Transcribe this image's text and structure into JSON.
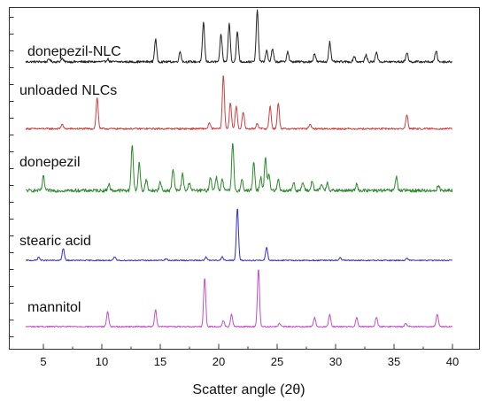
{
  "chart_data": {
    "type": "line",
    "xlabel": "Scatter angle (2θ)",
    "ylabel": "",
    "xlim": [
      3,
      40
    ],
    "x_ticks": [
      5,
      10,
      15,
      20,
      25,
      30,
      35,
      40
    ],
    "x_tick_labels": [
      "5",
      "10",
      "15",
      "20",
      "25",
      "30",
      "35",
      "40"
    ],
    "grid": false,
    "legend": "inline labels",
    "series": [
      {
        "name": "donepezil-NLC",
        "color": "#222222",
        "baseline": 0.05,
        "noise": 0.02,
        "peaks": [
          [
            5.5,
            0.05
          ],
          [
            6.6,
            0.06
          ],
          [
            10.5,
            0.05
          ],
          [
            14.6,
            0.4
          ],
          [
            16.7,
            0.18
          ],
          [
            18.7,
            0.7
          ],
          [
            20.2,
            0.48
          ],
          [
            20.9,
            0.68
          ],
          [
            21.6,
            0.53
          ],
          [
            23.3,
            0.92
          ],
          [
            24.1,
            0.2
          ],
          [
            24.6,
            0.22
          ],
          [
            25.9,
            0.18
          ],
          [
            28.2,
            0.15
          ],
          [
            29.5,
            0.35
          ],
          [
            31.6,
            0.1
          ],
          [
            32.6,
            0.12
          ],
          [
            33.5,
            0.18
          ],
          [
            36.1,
            0.17
          ],
          [
            38.6,
            0.2
          ]
        ]
      },
      {
        "name": "unloaded NLCs",
        "color": "#d04040",
        "baseline": 0.04,
        "noise": 0.015,
        "peaks": [
          [
            6.6,
            0.08
          ],
          [
            9.6,
            0.55
          ],
          [
            19.2,
            0.1
          ],
          [
            20.4,
            0.95
          ],
          [
            21.0,
            0.45
          ],
          [
            21.5,
            0.4
          ],
          [
            22.1,
            0.3
          ],
          [
            23.3,
            0.1
          ],
          [
            24.4,
            0.4
          ],
          [
            25.1,
            0.45
          ],
          [
            27.8,
            0.08
          ],
          [
            36.1,
            0.25
          ]
        ]
      },
      {
        "name": "donepezil",
        "color": "#2a8a2a",
        "baseline": 0.06,
        "noise": 0.03,
        "peaks": [
          [
            5.0,
            0.25
          ],
          [
            10.6,
            0.12
          ],
          [
            12.6,
            0.85
          ],
          [
            13.2,
            0.5
          ],
          [
            13.8,
            0.2
          ],
          [
            15.0,
            0.15
          ],
          [
            16.1,
            0.4
          ],
          [
            16.9,
            0.3
          ],
          [
            17.5,
            0.15
          ],
          [
            19.3,
            0.25
          ],
          [
            19.8,
            0.25
          ],
          [
            20.3,
            0.2
          ],
          [
            21.2,
            0.85
          ],
          [
            22.0,
            0.2
          ],
          [
            23.0,
            0.5
          ],
          [
            23.6,
            0.25
          ],
          [
            24.0,
            0.6
          ],
          [
            24.3,
            0.3
          ],
          [
            25.1,
            0.2
          ],
          [
            26.4,
            0.15
          ],
          [
            27.2,
            0.15
          ],
          [
            28.0,
            0.18
          ],
          [
            28.8,
            0.12
          ],
          [
            29.3,
            0.15
          ],
          [
            31.8,
            0.12
          ],
          [
            35.2,
            0.25
          ],
          [
            38.8,
            0.1
          ]
        ]
      },
      {
        "name": "stearic acid",
        "color": "#3030d0",
        "baseline": 0.03,
        "noise": 0.01,
        "peaks": [
          [
            4.6,
            0.06
          ],
          [
            6.7,
            0.22
          ],
          [
            11.1,
            0.06
          ],
          [
            15.5,
            0.03
          ],
          [
            18.9,
            0.06
          ],
          [
            20.3,
            0.07
          ],
          [
            21.6,
            0.95
          ],
          [
            24.1,
            0.24
          ],
          [
            30.4,
            0.05
          ],
          [
            36.1,
            0.04
          ]
        ]
      },
      {
        "name": "mannitol",
        "color": "#c050c0",
        "baseline": 0.03,
        "noise": 0.01,
        "peaks": [
          [
            10.5,
            0.25
          ],
          [
            14.6,
            0.28
          ],
          [
            18.8,
            0.8
          ],
          [
            20.4,
            0.1
          ],
          [
            21.1,
            0.2
          ],
          [
            23.4,
            0.95
          ],
          [
            25.2,
            0.05
          ],
          [
            28.2,
            0.15
          ],
          [
            29.5,
            0.2
          ],
          [
            31.8,
            0.15
          ],
          [
            33.5,
            0.15
          ],
          [
            36.0,
            0.05
          ],
          [
            38.7,
            0.2
          ]
        ]
      }
    ]
  }
}
